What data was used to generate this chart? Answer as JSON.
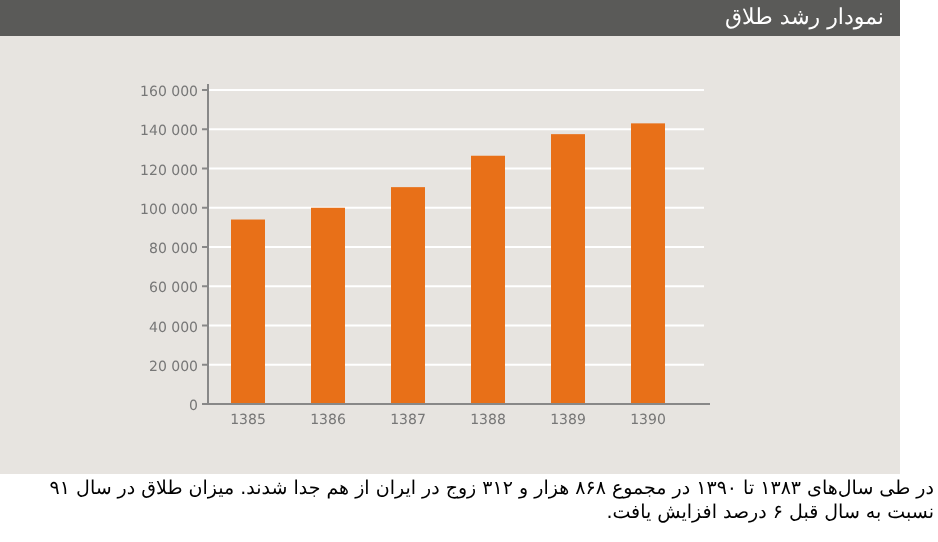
{
  "chart_data": {
    "type": "bar",
    "title": "نمودار رشد طلاق",
    "categories": [
      "1385",
      "1386",
      "1387",
      "1388",
      "1389",
      "1390"
    ],
    "values": [
      94000,
      100000,
      110500,
      126500,
      137500,
      143000
    ],
    "color": "#e87018",
    "ylim": [
      0,
      160000
    ],
    "yticks": [
      0,
      {
        "value": 20000,
        "label": "20 000"
      },
      {
        "value": 40000,
        "label": "40 000"
      },
      {
        "value": 60000,
        "label": "60 000"
      },
      {
        "value": 80000,
        "label": "80 000"
      },
      {
        "value": 100000,
        "label": "100 000"
      },
      {
        "value": 120000,
        "label": "120 000"
      },
      {
        "value": 140000,
        "label": "140 000"
      },
      {
        "value": 160000,
        "label": "160 000"
      }
    ],
    "grid": "y",
    "annotations": [
      "در طی سال‌های ۱۳۸۳ تا ۱۳۹۰ در مجموع ۸۶۸ هزار و ۳۱۲ زوج در ایران از هم جدا شدند. میزان طلاق در سال ۹۱ نسبت به سال قبل ۶ درصد افزایش یافت."
    ]
  }
}
